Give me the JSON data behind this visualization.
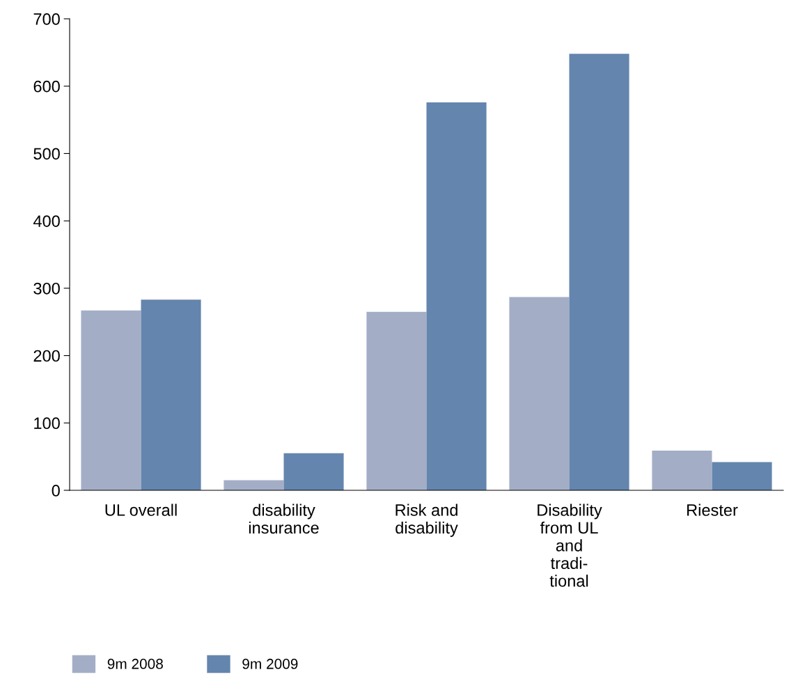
{
  "chart_data": {
    "type": "bar",
    "categories": [
      "UL overall",
      "disability\ninsurance",
      "Risk and\ndisability",
      "Disability\nfrom UL\nand\ntradi-\ntional",
      "Riester"
    ],
    "series": [
      {
        "name": "9m 2008",
        "color": "#a3aec6",
        "values": [
          267,
          15,
          265,
          287,
          59
        ]
      },
      {
        "name": "9m 2009",
        "color": "#6485ad",
        "values": [
          283,
          55,
          576,
          648,
          42
        ]
      }
    ],
    "ylim": [
      0,
      700
    ],
    "yticks": [
      0,
      100,
      200,
      300,
      400,
      500,
      600,
      700
    ],
    "grid": false,
    "legend": "bottom left"
  }
}
